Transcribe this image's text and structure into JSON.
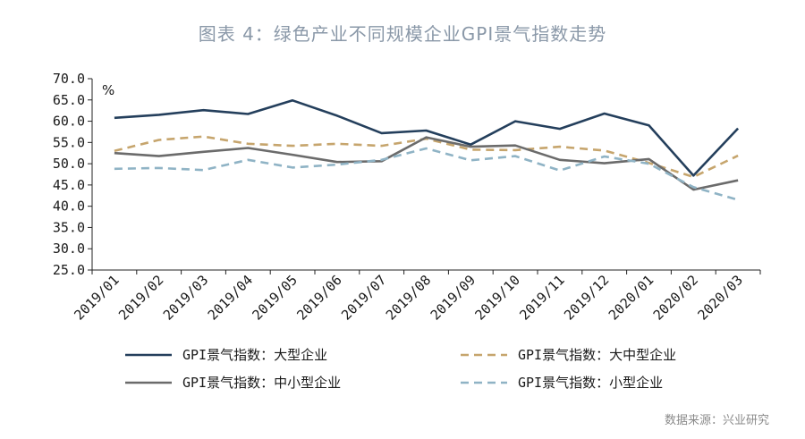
{
  "chart_data": {
    "type": "line",
    "title": "图表 4：绿色产业不同规模企业GPI景气指数走势",
    "unit_label": "%",
    "ylim": [
      25.0,
      70.0
    ],
    "y_ticks": [
      "70.0",
      "65.0",
      "60.0",
      "55.0",
      "50.0",
      "45.0",
      "40.0",
      "35.0",
      "30.0",
      "25.0"
    ],
    "categories": [
      "2019/01",
      "2019/02",
      "2019/03",
      "2019/04",
      "2019/05",
      "2019/06",
      "2019/07",
      "2019/08",
      "2019/09",
      "2019/10",
      "2019/11",
      "2019/12",
      "2020/01",
      "2020/02",
      "2020/03"
    ],
    "grid": false,
    "legend_position": "bottom",
    "series": [
      {
        "name": "GPI景气指数：大型企业",
        "color": "#243f5c",
        "dash": "solid",
        "values": [
          60.8,
          61.5,
          62.6,
          61.7,
          64.9,
          61.3,
          57.2,
          57.8,
          54.5,
          60.0,
          58.2,
          61.8,
          59.0,
          47.2,
          58.3
        ]
      },
      {
        "name": "GPI景气指数：大中型企业",
        "color": "#c6a56d",
        "dash": "dashed",
        "values": [
          53.0,
          55.6,
          56.4,
          54.7,
          54.2,
          54.7,
          54.2,
          55.9,
          53.3,
          53.2,
          54.0,
          53.1,
          50.2,
          46.9,
          51.9
        ]
      },
      {
        "name": "GPI景气指数：中小型企业",
        "color": "#6b6b6b",
        "dash": "solid",
        "values": [
          52.5,
          51.8,
          52.8,
          53.7,
          52.1,
          50.4,
          50.6,
          56.2,
          54.0,
          54.3,
          50.9,
          50.1,
          51.1,
          43.9,
          46.1
        ]
      },
      {
        "name": "GPI景气指数：小型企业",
        "color": "#8fb3c5",
        "dash": "dashed",
        "values": [
          48.8,
          49.0,
          48.5,
          50.9,
          49.1,
          49.8,
          50.9,
          53.6,
          50.8,
          51.8,
          48.4,
          51.7,
          50.0,
          44.5,
          41.5
        ]
      }
    ]
  },
  "source_note": "数据来源：兴业研究"
}
